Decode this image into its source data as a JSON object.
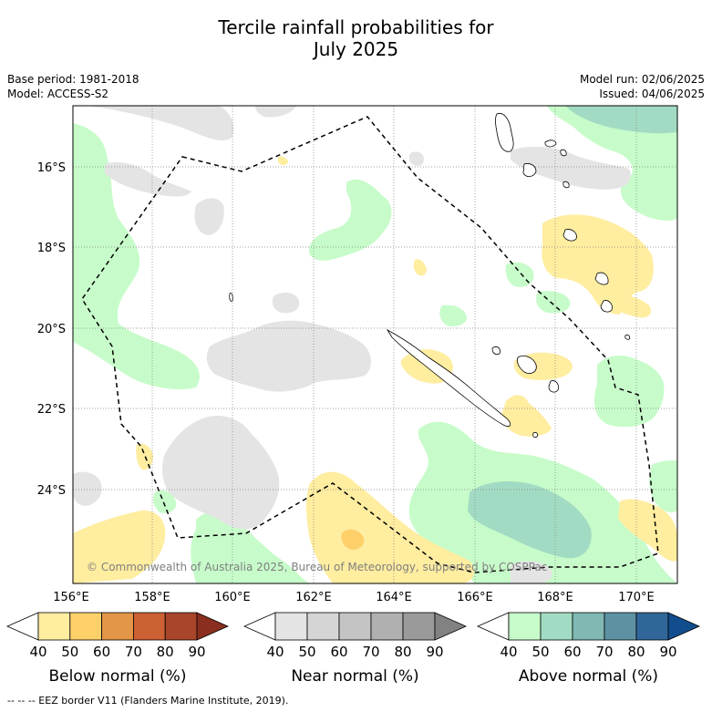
{
  "title_line1": "Tercile rainfall probabilities for",
  "title_line2": "July 2025",
  "meta": {
    "base_period": "Base period: 1981-2018",
    "model": "Model: ACCESS-S2",
    "model_run": "Model run: 02/06/2025",
    "issued": "Issued: 04/06/2025"
  },
  "map": {
    "lat_labels": [
      "16°S",
      "18°S",
      "20°S",
      "22°S",
      "24°S"
    ],
    "lon_labels": [
      "156°E",
      "158°E",
      "160°E",
      "162°E",
      "164°E",
      "166°E",
      "168°E",
      "170°E"
    ],
    "copyright": "© Commonwealth of Australia 2025, Bureau of Meteorology, supported by COSPPac",
    "colors": {
      "below_50": "#ffeda0",
      "below_60": "#fed06a",
      "near_50": "#e4e4e4",
      "above_50": "#c7fcca",
      "above_60": "#a2dbc3",
      "eez_line": "#000000"
    }
  },
  "colorbars": [
    {
      "label": "Below normal (%)",
      "ticks": [
        "40",
        "50",
        "60",
        "70",
        "80",
        "90"
      ],
      "colors": [
        "#ffeda0",
        "#fed06a",
        "#e39548",
        "#cc6133",
        "#a8452a",
        "#8a2f1f"
      ]
    },
    {
      "label": "Near normal (%)",
      "ticks": [
        "40",
        "50",
        "60",
        "70",
        "80",
        "90"
      ],
      "colors": [
        "#e4e4e4",
        "#d5d5d5",
        "#c4c4c4",
        "#b0b0b0",
        "#9a9a9a",
        "#828282"
      ]
    },
    {
      "label": "Above normal (%)",
      "ticks": [
        "40",
        "50",
        "60",
        "70",
        "80",
        "90"
      ],
      "colors": [
        "#c7fcca",
        "#a2dbc3",
        "#80b8b3",
        "#5d92a3",
        "#306699",
        "#124d8e"
      ]
    }
  ],
  "footnote": "-- -- -- EEZ border V11 (Flanders Marine Institute, 2019)."
}
